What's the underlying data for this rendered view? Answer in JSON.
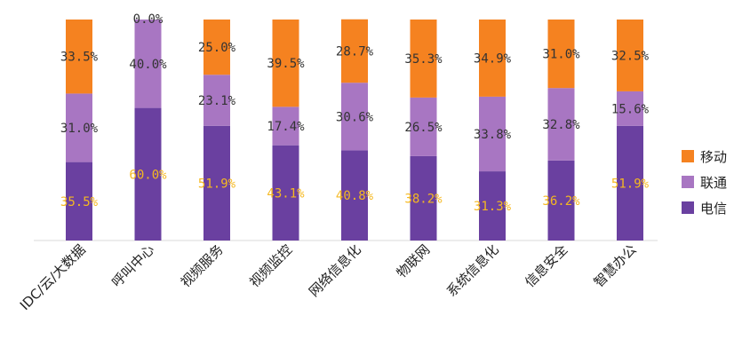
{
  "chart_data": {
    "type": "bar",
    "stacked": true,
    "percent_stacked": true,
    "categories": [
      "IDC/云/大数据",
      "呼叫中心",
      "视频服务",
      "视频监控",
      "网络信息化",
      "物联网",
      "系统信息化",
      "信息安全",
      "智慧办公"
    ],
    "series": [
      {
        "name": "电信",
        "color": "#6a40a0",
        "label_color": "#f5b820",
        "values": [
          35.5,
          60.0,
          51.9,
          43.1,
          40.8,
          38.2,
          31.3,
          36.2,
          51.9
        ],
        "labels": [
          "35.5%",
          "60.0%",
          "51.9%",
          "43.1%",
          "40.8%",
          "38.2%",
          "31.3%",
          "36.2%",
          "51.9%"
        ]
      },
      {
        "name": "联通",
        "color": "#a876c2",
        "label_color": "#333333",
        "values": [
          31.0,
          40.0,
          23.1,
          17.4,
          30.6,
          26.5,
          33.8,
          32.8,
          15.6
        ],
        "labels": [
          "31.0%",
          "40.0%",
          "23.1%",
          "17.4%",
          "30.6%",
          "26.5%",
          "33.8%",
          "32.8%",
          "15.6%"
        ]
      },
      {
        "name": "移动",
        "color": "#f58220",
        "label_color": "#333333",
        "values": [
          33.5,
          0.0,
          25.0,
          39.5,
          28.7,
          35.3,
          34.9,
          31.0,
          32.5
        ],
        "labels": [
          "33.5%",
          "0.0%",
          "25.0%",
          "39.5%",
          "28.7%",
          "35.3%",
          "34.9%",
          "31.0%",
          "32.5%"
        ]
      }
    ],
    "legend_order": [
      "移动",
      "联通",
      "电信"
    ],
    "legend_position": "right",
    "ylim": [
      0,
      100
    ],
    "grid": false
  }
}
